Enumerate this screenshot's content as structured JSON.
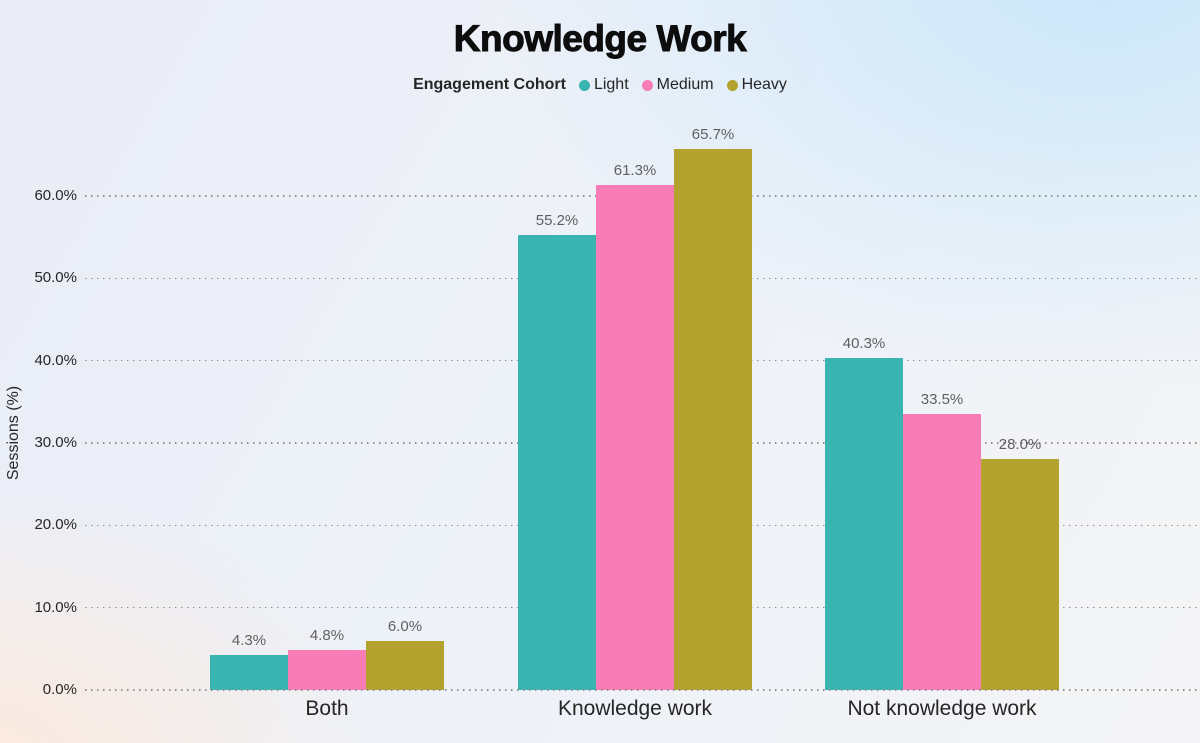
{
  "chart_data": {
    "type": "bar",
    "title": "Knowledge Work",
    "legend": {
      "title": "Engagement Cohort",
      "position": "top"
    },
    "categories": [
      "Both",
      "Knowledge work",
      "Not knowledge work"
    ],
    "series": [
      {
        "name": "Light",
        "color": "#3ab4b0",
        "values": [
          4.3,
          55.2,
          40.3
        ],
        "labels": [
          "4.3%",
          "55.2%",
          "40.3%"
        ]
      },
      {
        "name": "Medium",
        "color": "#f87cb6",
        "values": [
          4.8,
          61.3,
          33.5
        ],
        "labels": [
          "4.8%",
          "61.3%",
          "33.5%"
        ]
      },
      {
        "name": "Heavy",
        "color": "#b4a22e",
        "values": [
          6.0,
          65.7,
          28.0
        ],
        "labels": [
          "6.0%",
          "65.7%",
          "28.0%"
        ]
      }
    ],
    "xlabel": "",
    "ylabel": "Sessions (%)",
    "ylim": [
      0,
      68
    ],
    "y_ticks": [
      {
        "value": 0,
        "label": "0.0%"
      },
      {
        "value": 10,
        "label": "10.0%"
      },
      {
        "value": 20,
        "label": "20.0%"
      },
      {
        "value": 30,
        "label": "30.0%"
      },
      {
        "value": 40,
        "label": "40.0%"
      },
      {
        "value": 50,
        "label": "50.0%"
      },
      {
        "value": 60,
        "label": "60.0%"
      }
    ],
    "grid": "horizontal-dotted",
    "bar_value_labels": true
  },
  "colors": {
    "grid": "#909090",
    "title-text": "#0d0d0d",
    "axis-text": "#262626",
    "value-label-text": "#606060",
    "bg-top-right": "#cbe7fa",
    "bg-bottom-left": "#fde9db",
    "bg-base": "#e9ecf6"
  }
}
